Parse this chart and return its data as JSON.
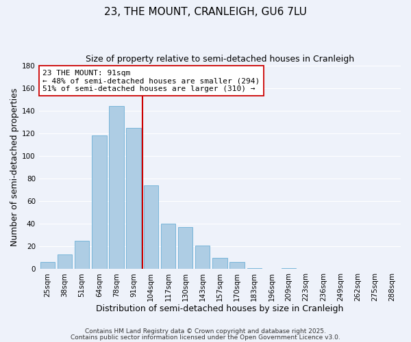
{
  "title": "23, THE MOUNT, CRANLEIGH, GU6 7LU",
  "subtitle": "Size of property relative to semi-detached houses in Cranleigh",
  "xlabel": "Distribution of semi-detached houses by size in Cranleigh",
  "ylabel": "Number of semi-detached properties",
  "categories": [
    "25sqm",
    "38sqm",
    "51sqm",
    "64sqm",
    "78sqm",
    "91sqm",
    "104sqm",
    "117sqm",
    "130sqm",
    "143sqm",
    "157sqm",
    "170sqm",
    "183sqm",
    "196sqm",
    "209sqm",
    "223sqm",
    "236sqm",
    "249sqm",
    "262sqm",
    "275sqm",
    "288sqm"
  ],
  "values": [
    6,
    13,
    25,
    118,
    144,
    125,
    74,
    40,
    37,
    21,
    10,
    6,
    1,
    0,
    1,
    0,
    0,
    0,
    0,
    0,
    0
  ],
  "bar_color": "#aecde4",
  "bar_edge_color": "#6aaed6",
  "highlight_bar_idx": 5,
  "highlight_color": "#cc0000",
  "annotation_line1": "23 THE MOUNT: 91sqm",
  "annotation_line2": "← 48% of semi-detached houses are smaller (294)",
  "annotation_line3": "51% of semi-detached houses are larger (310) →",
  "annotation_box_color": "#ffffff",
  "annotation_box_edge": "#cc0000",
  "ylim": [
    0,
    180
  ],
  "yticks": [
    0,
    20,
    40,
    60,
    80,
    100,
    120,
    140,
    160,
    180
  ],
  "footer1": "Contains HM Land Registry data © Crown copyright and database right 2025.",
  "footer2": "Contains public sector information licensed under the Open Government Licence v3.0.",
  "background_color": "#eef2fa",
  "grid_color": "#ffffff",
  "title_fontsize": 11,
  "subtitle_fontsize": 9,
  "axis_label_fontsize": 9,
  "tick_fontsize": 7.5,
  "annotation_fontsize": 8,
  "footer_fontsize": 6.5
}
